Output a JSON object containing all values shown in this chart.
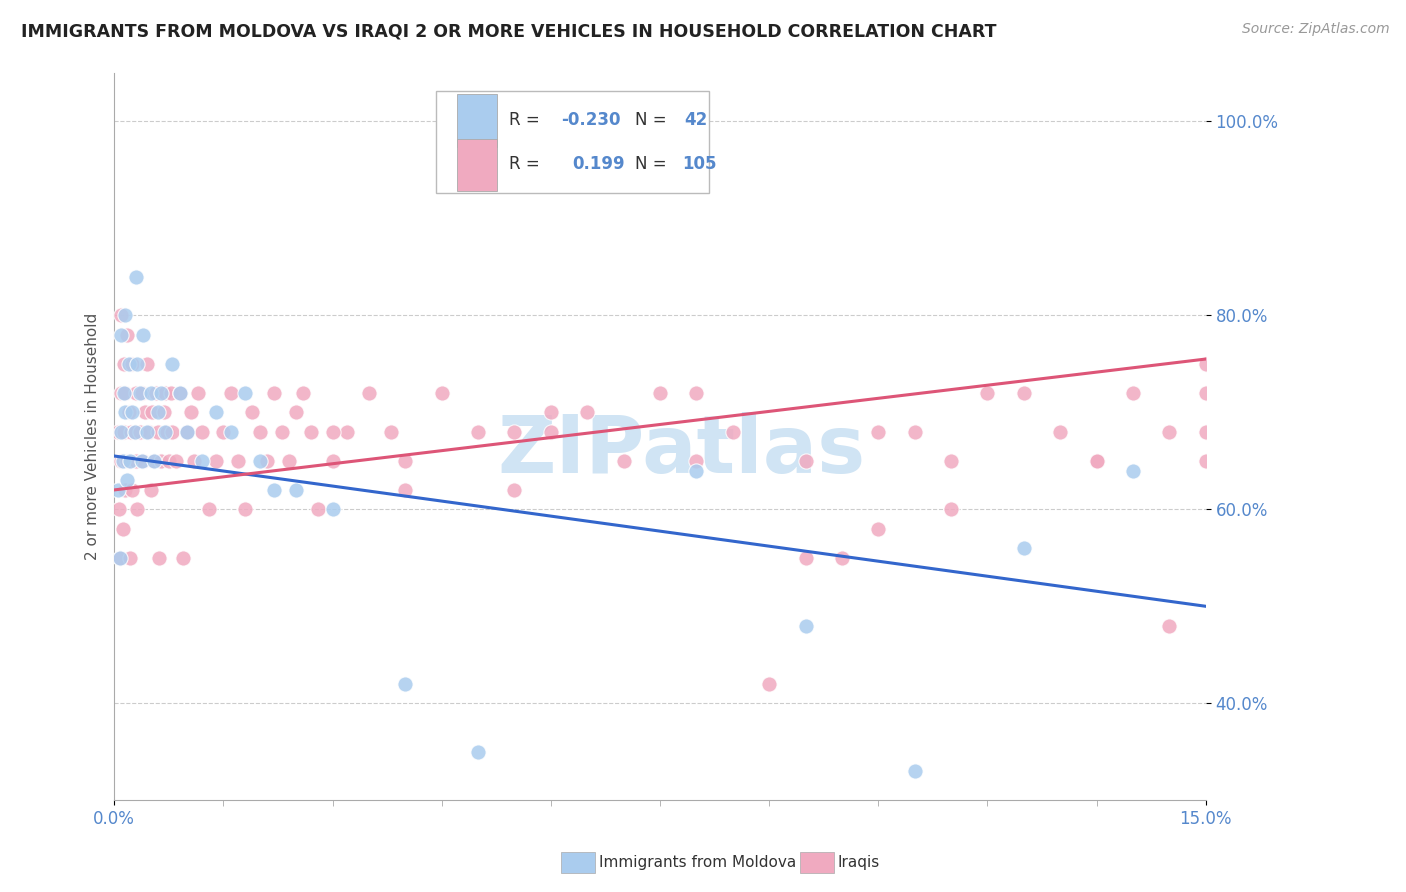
{
  "title": "IMMIGRANTS FROM MOLDOVA VS IRAQI 2 OR MORE VEHICLES IN HOUSEHOLD CORRELATION CHART",
  "source": "Source: ZipAtlas.com",
  "ylabel": "2 or more Vehicles in Household",
  "xlim": [
    0.0,
    15.0
  ],
  "ylim": [
    30.0,
    105.0
  ],
  "yticks": [
    40.0,
    60.0,
    80.0,
    100.0
  ],
  "ytick_labels": [
    "40.0%",
    "60.0%",
    "80.0%",
    "100.0%"
  ],
  "color_moldova": "#aaccee",
  "color_iraq": "#f0aac0",
  "color_moldova_line": "#3366cc",
  "color_iraq_line": "#dd5577",
  "color_axis": "#5588cc",
  "color_title": "#222222",
  "background": "#ffffff",
  "watermark": "ZIPatlas",
  "watermark_color": "#d0e4f4",
  "legend_r1": "-0.230",
  "legend_n1": "42",
  "legend_r2": "0.199",
  "legend_n2": "105",
  "mol_x": [
    0.05,
    0.08,
    0.1,
    0.1,
    0.12,
    0.13,
    0.15,
    0.15,
    0.18,
    0.2,
    0.22,
    0.25,
    0.28,
    0.3,
    0.32,
    0.35,
    0.38,
    0.4,
    0.45,
    0.5,
    0.55,
    0.6,
    0.65,
    0.7,
    0.8,
    0.9,
    1.0,
    1.2,
    1.4,
    1.6,
    1.8,
    2.0,
    2.5,
    3.0,
    4.0,
    5.0,
    8.0,
    9.5,
    11.0,
    12.5,
    14.0,
    2.2
  ],
  "mol_y": [
    62,
    55,
    68,
    78,
    65,
    72,
    70,
    80,
    63,
    75,
    65,
    70,
    68,
    84,
    75,
    72,
    65,
    78,
    68,
    72,
    65,
    70,
    72,
    68,
    75,
    72,
    68,
    65,
    70,
    68,
    72,
    65,
    62,
    60,
    42,
    35,
    64,
    48,
    33,
    56,
    64,
    62
  ],
  "iraq_x": [
    0.05,
    0.06,
    0.08,
    0.09,
    0.1,
    0.1,
    0.12,
    0.13,
    0.14,
    0.15,
    0.15,
    0.18,
    0.18,
    0.2,
    0.22,
    0.23,
    0.25,
    0.25,
    0.28,
    0.3,
    0.3,
    0.32,
    0.35,
    0.38,
    0.4,
    0.42,
    0.45,
    0.48,
    0.5,
    0.52,
    0.55,
    0.58,
    0.6,
    0.62,
    0.65,
    0.68,
    0.7,
    0.72,
    0.75,
    0.78,
    0.8,
    0.85,
    0.9,
    0.95,
    1.0,
    1.05,
    1.1,
    1.15,
    1.2,
    1.3,
    1.4,
    1.5,
    1.6,
    1.7,
    1.8,
    1.9,
    2.0,
    2.1,
    2.2,
    2.3,
    2.4,
    2.5,
    2.6,
    2.7,
    2.8,
    3.0,
    3.2,
    3.5,
    3.8,
    4.0,
    4.5,
    5.0,
    5.5,
    6.0,
    6.5,
    7.0,
    8.0,
    8.5,
    9.0,
    9.5,
    10.0,
    10.5,
    11.0,
    11.5,
    12.0,
    13.0,
    13.5,
    14.0,
    14.5,
    15.0,
    3.0,
    4.0,
    5.5,
    6.0,
    7.5,
    8.0,
    9.5,
    10.5,
    11.5,
    12.5,
    13.5,
    14.5,
    15.0,
    15.0,
    15.0
  ],
  "iraq_y": [
    68,
    60,
    55,
    72,
    65,
    80,
    58,
    75,
    68,
    62,
    72,
    65,
    78,
    70,
    55,
    68,
    62,
    75,
    68,
    65,
    72,
    60,
    68,
    72,
    65,
    70,
    75,
    68,
    62,
    70,
    65,
    72,
    68,
    55,
    65,
    70,
    72,
    68,
    65,
    72,
    68,
    65,
    72,
    55,
    68,
    70,
    65,
    72,
    68,
    60,
    65,
    68,
    72,
    65,
    60,
    70,
    68,
    65,
    72,
    68,
    65,
    70,
    72,
    68,
    60,
    65,
    68,
    72,
    68,
    65,
    72,
    68,
    62,
    68,
    70,
    65,
    72,
    68,
    42,
    65,
    55,
    58,
    68,
    65,
    72,
    68,
    65,
    72,
    48,
    75,
    68,
    62,
    68,
    70,
    72,
    65,
    55,
    68,
    60,
    72,
    65,
    68,
    72,
    68,
    65
  ]
}
